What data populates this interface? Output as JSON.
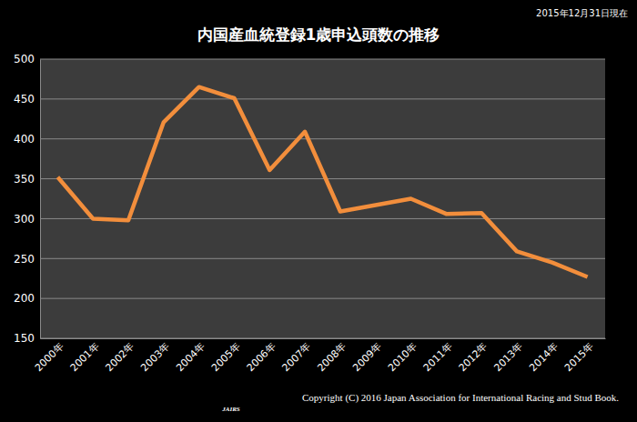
{
  "chart_data": {
    "type": "line",
    "title": "内国産血統登録1歳申込頭数の推移",
    "subtitle": "2015年12月31日現在",
    "annotations": [
      "JAIRS",
      "Copyright (C) 2016 Japan Association for International Racing and Stud Book."
    ],
    "categories": [
      "2000年",
      "2001年",
      "2002年",
      "2003年",
      "2004年",
      "2005年",
      "2006年",
      "2007年",
      "2008年",
      "2009年",
      "2010年",
      "2011年",
      "2012年",
      "2013年",
      "2014年",
      "2015年"
    ],
    "values": [
      352,
      300,
      298,
      421,
      465,
      451,
      361,
      409,
      309,
      317,
      325,
      306,
      307,
      259,
      245,
      227
    ],
    "color": "#f28e3c",
    "ylim": [
      150,
      500
    ],
    "yticks": [
      150,
      200,
      250,
      300,
      350,
      400,
      450,
      500
    ],
    "grid": true
  }
}
